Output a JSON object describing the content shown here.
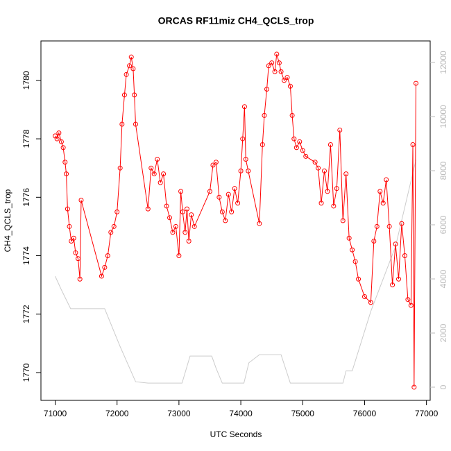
{
  "chart_data": {
    "type": "line",
    "title": "ORCAS RF11miz CH4_QCLS_trop",
    "x_label": "UTC Seconds",
    "y_label": "CH4_QCLS_trop",
    "xlim": [
      70770,
      77060
    ],
    "xticks": [
      71000,
      72000,
      73000,
      74000,
      75000,
      76000,
      77000
    ],
    "ylim": [
      1769.05,
      1781.35
    ],
    "yticks": [
      1770,
      1772,
      1774,
      1776,
      1778,
      1780
    ],
    "y2lim": [
      -487,
      12795
    ],
    "y2ticks": [
      0,
      2000,
      4000,
      6000,
      8000,
      10000,
      12000
    ],
    "y2_color": "#bbbbbb",
    "series": [
      {
        "color": "#ff0000",
        "markers": true,
        "x": [
          71000,
          71030,
          71060,
          71100,
          71130,
          71160,
          71180,
          71200,
          71230,
          71260,
          71300,
          71330,
          71370,
          71400,
          71420,
          71750,
          71800,
          71850,
          71900,
          71950,
          72000,
          72050,
          72080,
          72120,
          72150,
          72200,
          72230,
          72260,
          72280,
          72300,
          72500,
          72550,
          72600,
          72650,
          72700,
          72750,
          72800,
          72850,
          72900,
          72950,
          73000,
          73030,
          73060,
          73100,
          73130,
          73160,
          73200,
          73250,
          73500,
          73550,
          73600,
          73650,
          73700,
          73750,
          73800,
          73850,
          73900,
          73950,
          74000,
          74030,
          74060,
          74080,
          74120,
          74300,
          74350,
          74380,
          74420,
          74450,
          74500,
          74550,
          74580,
          74620,
          74650,
          74700,
          74750,
          74800,
          74830,
          74860,
          74900,
          74950,
          75000,
          75050,
          75200,
          75250,
          75300,
          75350,
          75400,
          75450,
          75500,
          75550,
          75600,
          75650,
          75700,
          75750,
          75800,
          75850,
          75900,
          76000,
          76100,
          76150,
          76200,
          76250,
          76300,
          76350,
          76400,
          76450,
          76500,
          76550,
          76600,
          76650,
          76700,
          76750,
          76780,
          76800,
          76830
        ],
        "values": [
          1778.1,
          1778.0,
          1778.2,
          1777.9,
          1777.7,
          1777.2,
          1776.8,
          1775.6,
          1775.0,
          1774.5,
          1774.6,
          1774.1,
          1773.9,
          1773.2,
          1775.9,
          1773.3,
          1773.6,
          1774.0,
          1774.8,
          1775.0,
          1775.5,
          1777.0,
          1778.5,
          1779.5,
          1780.2,
          1780.5,
          1780.8,
          1780.4,
          1779.5,
          1778.5,
          1775.6,
          1777.0,
          1776.8,
          1777.3,
          1776.5,
          1776.8,
          1775.7,
          1775.3,
          1774.8,
          1775.0,
          1774.0,
          1776.2,
          1775.5,
          1774.8,
          1775.6,
          1774.5,
          1775.4,
          1775.0,
          1776.2,
          1777.1,
          1777.2,
          1776.0,
          1775.5,
          1775.2,
          1776.1,
          1775.5,
          1776.3,
          1775.8,
          1776.9,
          1778.0,
          1779.1,
          1777.3,
          1776.9,
          1775.1,
          1777.8,
          1778.8,
          1779.7,
          1780.5,
          1780.6,
          1780.3,
          1780.9,
          1780.6,
          1780.3,
          1780.0,
          1780.1,
          1779.8,
          1778.8,
          1778.0,
          1777.7,
          1777.9,
          1777.6,
          1777.4,
          1777.2,
          1777.0,
          1775.8,
          1776.9,
          1776.2,
          1777.8,
          1775.7,
          1776.3,
          1778.3,
          1775.2,
          1776.8,
          1774.6,
          1774.2,
          1773.8,
          1773.2,
          1772.6,
          1772.4,
          1774.5,
          1775.0,
          1776.2,
          1775.8,
          1776.6,
          1775.0,
          1773.0,
          1774.4,
          1773.2,
          1775.1,
          1774.0,
          1772.5,
          1772.3,
          1777.8,
          1769.5,
          1779.9
        ]
      },
      {
        "color": "#cccccc",
        "axis": "y2",
        "markers": false,
        "x": [
          71000,
          71100,
          71250,
          71800,
          72050,
          72300,
          72500,
          73050,
          73180,
          73530,
          73600,
          73700,
          74050,
          74130,
          74300,
          74650,
          74800,
          75650,
          75700,
          75800,
          76100,
          76500,
          76830
        ],
        "values": [
          4100,
          3600,
          2900,
          2900,
          1500,
          200,
          150,
          150,
          1150,
          1150,
          700,
          150,
          150,
          900,
          1200,
          1200,
          150,
          150,
          600,
          600,
          2800,
          5200,
          8400
        ]
      }
    ]
  }
}
